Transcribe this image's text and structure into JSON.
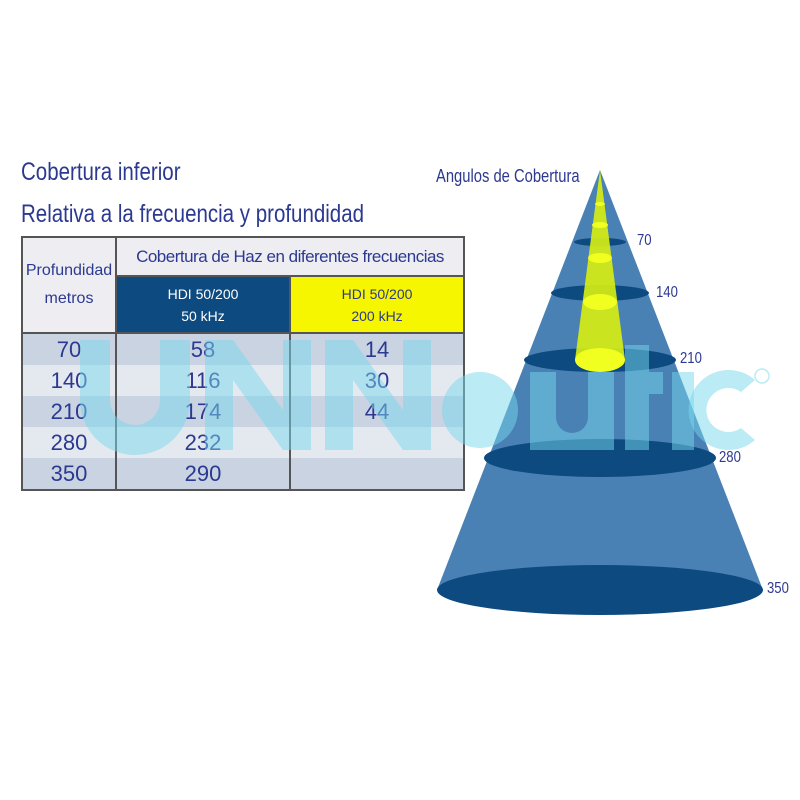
{
  "title": "Cobertura inferior",
  "subtitle": "Relativa a la frecuencia y profundidad",
  "table": {
    "depth_header": [
      "Profundidad",
      "metros"
    ],
    "group_header": "Cobertura de Haz en diferentes frecuencias",
    "columns": [
      {
        "model": "HDI 50/200",
        "freq": "50 kHz",
        "color": "#0d4a80"
      },
      {
        "model": "HDI 50/200",
        "freq": "200 kHz",
        "color": "#f6f600"
      }
    ],
    "rows": [
      {
        "depth": "70",
        "c50": "58",
        "c200": "14"
      },
      {
        "depth": "140",
        "c50": "116",
        "c200": "30"
      },
      {
        "depth": "210",
        "c50": "174",
        "c200": "44"
      },
      {
        "depth": "280",
        "c50": "232",
        "c200": ""
      },
      {
        "depth": "350",
        "c50": "290",
        "c200": ""
      }
    ]
  },
  "cone": {
    "title": "Angulos de Cobertura",
    "depth_labels": [
      "70",
      "140",
      "210",
      "280",
      "350"
    ],
    "wide_beam_color": "#3f7ab0",
    "narrow_beam_color": "#e6f500"
  },
  "watermark": "UNNautic®"
}
